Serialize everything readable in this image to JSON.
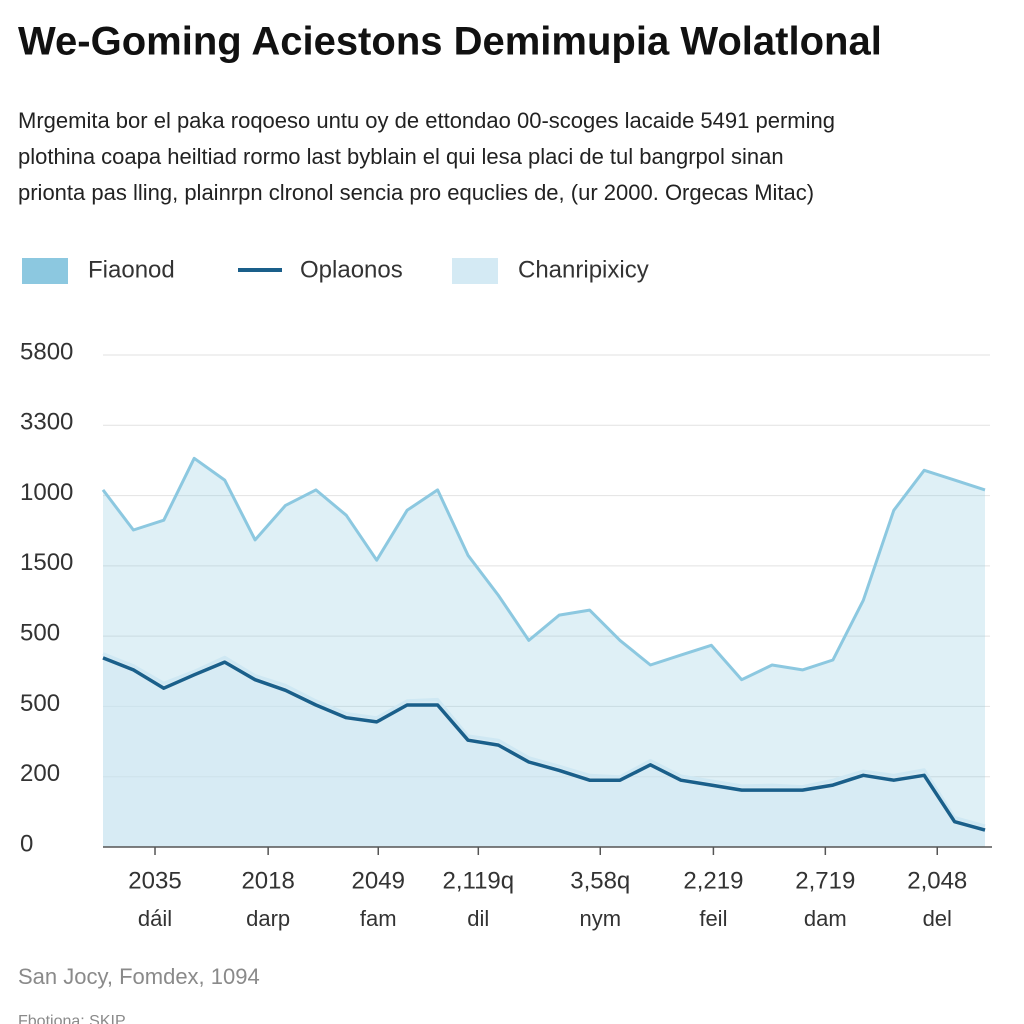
{
  "chart_data": {
    "type": "line",
    "title": "We-Goming Aciestons Demimupia Wolatlonal",
    "subtitle": [
      "Mrgemita bor el paka roqoeso untu oy de ettondao 00-scoges lacaide 5491 perming",
      "plothina coapa heiltiad rormo last byblain el qui lesa placi de tul bangrpol sinan",
      "prionta pas lling, plainrpn clronol sencia pro equclies de, (ur 2000. Orgecas Mitac)"
    ],
    "source": "San Jocy, Fomdex, 1094",
    "note": "Fbotiona: SKIP",
    "xlim": [
      0,
      29
    ],
    "xticks": [
      {
        "value": 1.71,
        "label": "2035"
      },
      {
        "value": 5.43,
        "label": "2018"
      },
      {
        "value": 9.05,
        "label": "2049"
      },
      {
        "value": 12.34,
        "label": "2,119q"
      },
      {
        "value": 16.35,
        "label": "3,58q"
      },
      {
        "value": 20.07,
        "label": "2,219"
      },
      {
        "value": 23.75,
        "label": "2,719"
      },
      {
        "value": 27.43,
        "label": "2,048"
      }
    ],
    "xtick_sublabels": [
      "dáil",
      "darp",
      "fam",
      "dil",
      "nym",
      "feil",
      "dam",
      "del"
    ],
    "ylim": [
      0,
      7
    ],
    "yticks": [
      {
        "value": 0,
        "label": "0"
      },
      {
        "value": 1,
        "label": "200"
      },
      {
        "value": 2,
        "label": "500"
      },
      {
        "value": 3,
        "label": "500"
      },
      {
        "value": 4,
        "label": "1500"
      },
      {
        "value": 5,
        "label": "1000"
      },
      {
        "value": 6,
        "label": "3300"
      },
      {
        "value": 7,
        "label": "5800"
      }
    ],
    "grid": true,
    "series": [
      {
        "name": "Fiaonod",
        "color": "#8cc8e0",
        "style": "area",
        "values": [
          5.08,
          4.51,
          4.65,
          5.53,
          5.22,
          4.37,
          4.86,
          5.08,
          4.72,
          4.08,
          4.79,
          5.08,
          4.15,
          3.58,
          2.94,
          3.3,
          3.37,
          2.94,
          2.59,
          2.73,
          2.87,
          2.38,
          2.59,
          2.52,
          2.66,
          3.51,
          4.79,
          5.36,
          5.22,
          5.08
        ]
      },
      {
        "name": "Oplaonos",
        "color": "#1a5f8a",
        "style": "line",
        "values": [
          2.69,
          2.52,
          2.26,
          2.45,
          2.63,
          2.38,
          2.23,
          2.02,
          1.84,
          1.78,
          2.02,
          2.02,
          1.52,
          1.45,
          1.21,
          1.09,
          0.95,
          0.95,
          1.17,
          0.95,
          0.88,
          0.81,
          0.81,
          0.81,
          0.88,
          1.02,
          0.95,
          1.02,
          0.36,
          0.24
        ]
      },
      {
        "name": "Chanripixicy",
        "color": "#cfe8f3",
        "style": "area",
        "values": [
          2.75,
          2.58,
          2.33,
          2.5,
          2.7,
          2.44,
          2.3,
          2.08,
          1.9,
          1.84,
          2.08,
          2.1,
          1.58,
          1.52,
          1.27,
          1.15,
          1.02,
          1.0,
          1.23,
          1.01,
          0.94,
          0.87,
          0.88,
          0.86,
          0.95,
          1.08,
          1.02,
          1.1,
          0.42,
          0.3
        ]
      }
    ]
  }
}
